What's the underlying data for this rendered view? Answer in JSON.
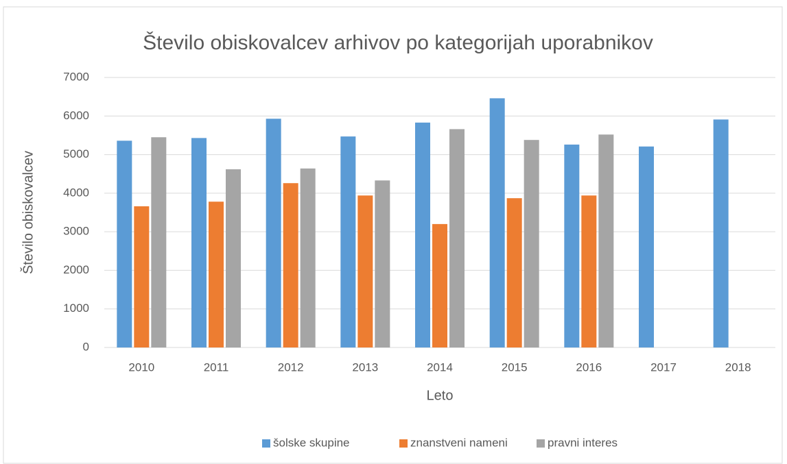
{
  "chart_data": {
    "type": "bar",
    "title": "Število obiskovalcev arhivov po kategorijah uporabnikov",
    "xlabel": "Leto",
    "ylabel": "Število obiskovalcev",
    "categories": [
      "2010",
      "2011",
      "2012",
      "2013",
      "2014",
      "2015",
      "2016",
      "2017",
      "2018"
    ],
    "series": [
      {
        "name": "šolske skupine",
        "color": "#5b9bd5",
        "values": [
          5360,
          5430,
          5930,
          5470,
          5830,
          6460,
          5260,
          5210,
          5910
        ]
      },
      {
        "name": "znanstveni nameni",
        "color": "#ed7d31",
        "values": [
          3660,
          3780,
          4260,
          3940,
          3200,
          3870,
          3940,
          null,
          null
        ]
      },
      {
        "name": "pravni interes",
        "color": "#a5a5a5",
        "values": [
          5450,
          4620,
          4640,
          4330,
          5660,
          5380,
          5520,
          null,
          null
        ]
      }
    ],
    "ylim": [
      0,
      7000
    ],
    "yticks": [
      0,
      1000,
      2000,
      3000,
      4000,
      5000,
      6000,
      7000
    ],
    "grid": true,
    "legend": "bottom"
  }
}
